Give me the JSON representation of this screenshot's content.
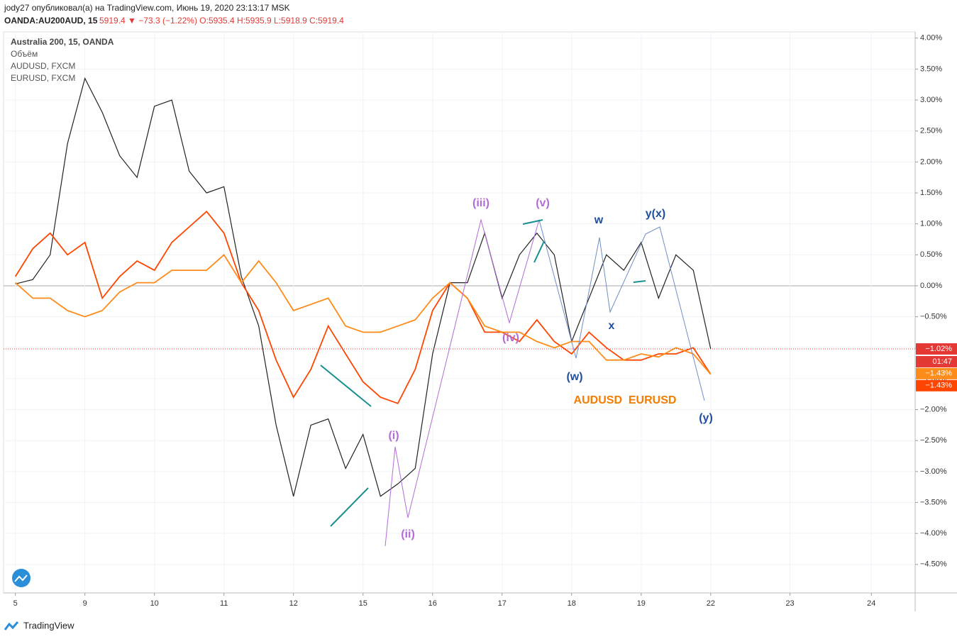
{
  "header": {
    "publisher": "jody27 опубликовал(а) на TradingView.com, Июнь 19, 2020 23:13:17 MSK",
    "symbol": "OANDA:AU200AUD, 15",
    "quote": "5919.4 ▼ −73.3 (−1.22%) O:5935.4 H:5935.9 L:5918.9 C:5919.4"
  },
  "footer": "TradingView",
  "chart_data": {
    "type": "line",
    "volume_label": "Объём",
    "x": [
      0,
      0.25,
      0.5,
      0.75,
      1,
      1.25,
      1.5,
      1.75,
      2,
      2.25,
      2.5,
      2.75,
      3,
      3.25,
      3.5,
      3.75,
      4,
      4.25,
      4.5,
      4.75,
      5,
      5.25,
      5.5,
      5.75,
      6,
      6.25,
      6.5,
      6.75,
      7,
      7.25,
      7.5,
      7.75,
      8,
      8.25,
      8.5,
      8.75,
      9,
      9.25,
      9.5,
      9.75,
      10
    ],
    "series": [
      {
        "name": "Australia 200, 15, OANDA",
        "color": "#222222",
        "values": [
          0.03,
          0.1,
          0.5,
          2.3,
          3.35,
          2.8,
          2.1,
          1.75,
          2.9,
          3.0,
          1.85,
          1.5,
          1.6,
          0.15,
          -0.65,
          -2.25,
          -3.4,
          -2.25,
          -2.15,
          -2.95,
          -2.4,
          -3.4,
          -3.2,
          -2.95,
          -1.1,
          0.05,
          0.05,
          0.85,
          -0.2,
          0.5,
          0.85,
          0.5,
          -0.9,
          -0.2,
          0.5,
          0.25,
          0.7,
          -0.2,
          0.5,
          0.25,
          -1.02
        ]
      },
      {
        "name": "AUDUSD, FXCM",
        "color": "#ff4500",
        "values": [
          0.15,
          0.6,
          0.85,
          0.5,
          0.7,
          -0.2,
          0.15,
          0.4,
          0.25,
          0.7,
          0.95,
          1.2,
          0.85,
          0.05,
          -0.4,
          -1.2,
          -1.8,
          -1.35,
          -0.65,
          -1.1,
          -1.55,
          -1.8,
          -1.9,
          -1.35,
          -0.4,
          0.05,
          -0.2,
          -0.75,
          -0.75,
          -0.9,
          -0.55,
          -0.9,
          -1.1,
          -0.75,
          -1.0,
          -1.2,
          -1.2,
          -1.1,
          -1.1,
          -1.0,
          -1.43
        ]
      },
      {
        "name": "EURUSD, FXCM",
        "color": "#ff8c1a",
        "values": [
          0.05,
          -0.2,
          -0.2,
          -0.4,
          -0.5,
          -0.4,
          -0.1,
          0.05,
          0.05,
          0.25,
          0.25,
          0.25,
          0.5,
          0.05,
          0.4,
          0.05,
          -0.4,
          -0.3,
          -0.2,
          -0.65,
          -0.75,
          -0.75,
          -0.65,
          -0.55,
          -0.2,
          0.05,
          -0.2,
          -0.65,
          -0.75,
          -0.75,
          -0.9,
          -1.0,
          -0.9,
          -0.9,
          -1.2,
          -1.2,
          -1.1,
          -1.15,
          -1.0,
          -1.1,
          -1.43
        ]
      }
    ],
    "xlim": [
      -0.17,
      12.94
    ],
    "xticks": [
      {
        "value": 0,
        "label": "5"
      },
      {
        "value": 1,
        "label": "9"
      },
      {
        "value": 2,
        "label": "10"
      },
      {
        "value": 3,
        "label": "11"
      },
      {
        "value": 4,
        "label": "12"
      },
      {
        "value": 5,
        "label": "15"
      },
      {
        "value": 6,
        "label": "16"
      },
      {
        "value": 7,
        "label": "17"
      },
      {
        "value": 8,
        "label": "18"
      },
      {
        "value": 9,
        "label": "19"
      },
      {
        "value": 10,
        "label": "22"
      },
      {
        "value": 11.14,
        "label": "23"
      },
      {
        "value": 12.31,
        "label": "24"
      }
    ],
    "ylim": [
      -4.96,
      4.1
    ],
    "yticks": [
      {
        "value": 4,
        "label": "4.00%"
      },
      {
        "value": 3.5,
        "label": "3.50%"
      },
      {
        "value": 3,
        "label": "3.00%"
      },
      {
        "value": 2.5,
        "label": "2.50%"
      },
      {
        "value": 2,
        "label": "2.00%"
      },
      {
        "value": 1.5,
        "label": "1.50%"
      },
      {
        "value": 1,
        "label": "1.00%"
      },
      {
        "value": 0.5,
        "label": "0.50%"
      },
      {
        "value": 0,
        "label": "0.00%"
      },
      {
        "value": -0.5,
        "label": "−0.50%"
      },
      {
        "value": -1,
        "label": "−1.00%"
      },
      {
        "value": -1.5,
        "label": "−1.50%"
      },
      {
        "value": -2,
        "label": "−2.00%"
      },
      {
        "value": -2.5,
        "label": "−2.50%"
      },
      {
        "value": -3,
        "label": "−3.00%"
      },
      {
        "value": -3.5,
        "label": "−3.50%"
      },
      {
        "value": -4,
        "label": "−4.00%"
      },
      {
        "value": -4.5,
        "label": "−4.50%"
      }
    ],
    "price_line": {
      "value": -1.02,
      "label": "−1.02%",
      "color": "#e53935"
    },
    "countdown": "01:47",
    "price_labels": [
      {
        "value": -1.43,
        "label": "−1.43%",
        "color": "#ff8c1a"
      },
      {
        "value": -1.43,
        "label": "−1.43%",
        "color": "#ff4500"
      }
    ],
    "annotations": [
      "(iii)",
      "(v)",
      "w",
      "y(x)",
      "(iv)",
      "x",
      "(w)",
      "AUDUSD  EURUSD",
      "(i)",
      "(ii)",
      "(y)"
    ]
  }
}
